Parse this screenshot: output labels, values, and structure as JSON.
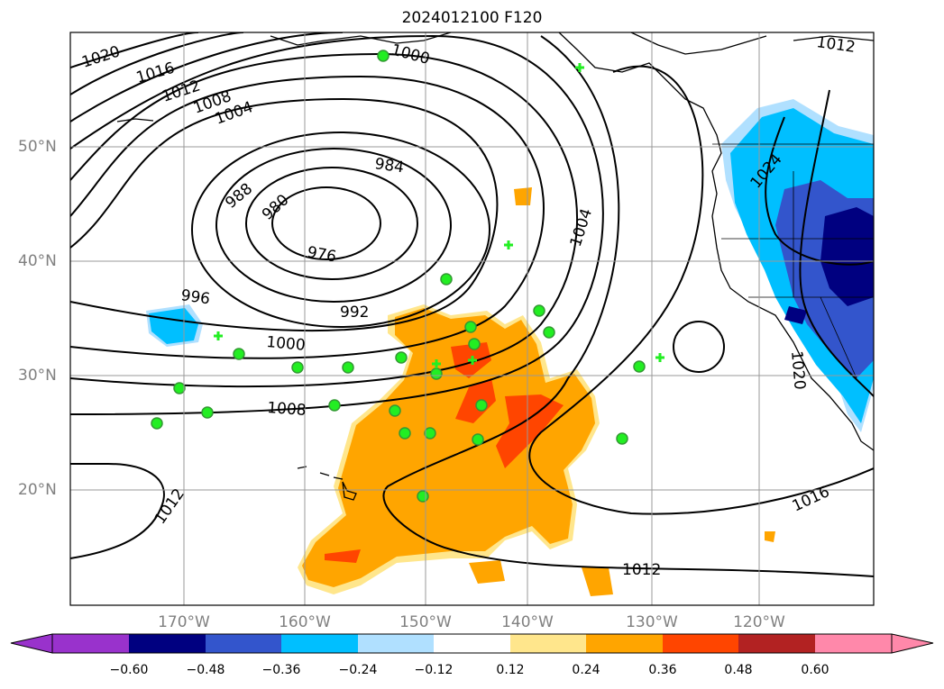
{
  "title": "2024012100 F120",
  "latitude_labels": [
    "50°N",
    "40°N",
    "30°N",
    "20°N"
  ],
  "longitude_labels": [
    "170°W",
    "160°W",
    "150°W",
    "140°W",
    "130°W",
    "120°W"
  ],
  "isobar_labels": [
    "1020",
    "1016",
    "1012",
    "1008",
    "1004",
    "1000",
    "984",
    "988",
    "980",
    "976",
    "996",
    "992",
    "1000",
    "1008",
    "1004",
    "1012",
    "1016",
    "1012",
    "1024",
    "1020",
    "1012"
  ],
  "colorbar": {
    "ticks": [
      "−0.60",
      "−0.48",
      "−0.36",
      "−0.24",
      "−0.12",
      "0.12",
      "0.24",
      "0.36",
      "0.48",
      "0.60"
    ],
    "colors": [
      "#9932cc",
      "#000080",
      "#3355cc",
      "#00bfff",
      "#b0e0ff",
      "#ffffff",
      "#ffe68c",
      "#ffa500",
      "#ff4500",
      "#b22222",
      "#ff88aa"
    ]
  },
  "markers": {
    "circle_color": "#22ee22",
    "count_circles": 26,
    "count_plus": 8
  }
}
